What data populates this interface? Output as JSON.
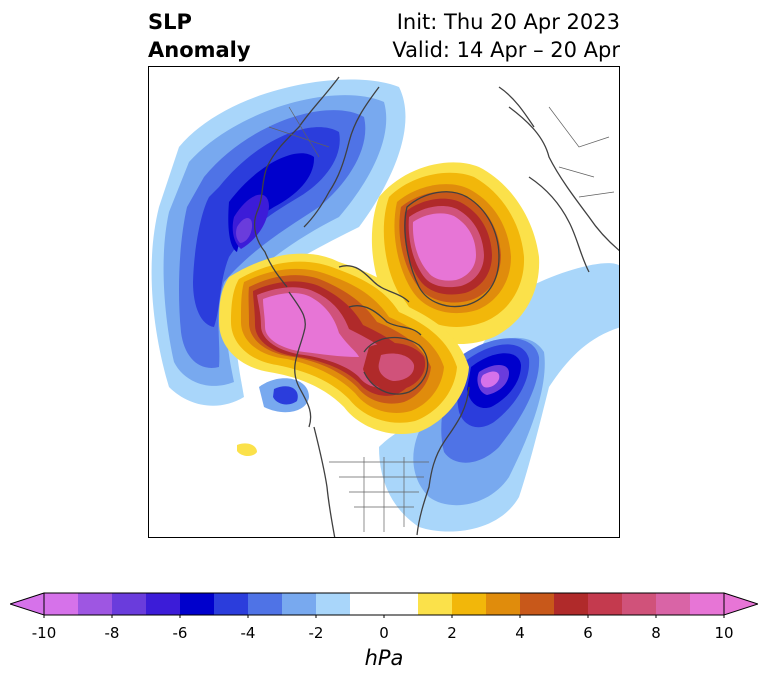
{
  "title": {
    "left_line1": "SLP",
    "left_line2": "Anomaly",
    "right_line1": "Init: Thu 20 Apr 2023",
    "right_line2": "Valid: 14 Apr – 20 Apr"
  },
  "colorbar": {
    "units": "hPa",
    "min": -10,
    "max": 10,
    "step": 1,
    "ticks": [
      "-10",
      "-8",
      "-6",
      "-4",
      "-2",
      "0",
      "2",
      "4",
      "6",
      "8",
      "10"
    ],
    "colors": [
      "#d672ea",
      "#9e56e2",
      "#6a3cdc",
      "#3c1cd8",
      "#0000cc",
      "#2b3ddc",
      "#4f73e6",
      "#78a9ef",
      "#a9d6fa",
      "#ffffff",
      "#ffffff",
      "#fbe14a",
      "#f2b70a",
      "#e08c0c",
      "#c8581a",
      "#b02a2a",
      "#c43a4e",
      "#d0527a",
      "#d964a6",
      "#e775d6"
    ],
    "extend_low_color": "#d672ea",
    "extend_high_color": "#e775d6"
  }
}
